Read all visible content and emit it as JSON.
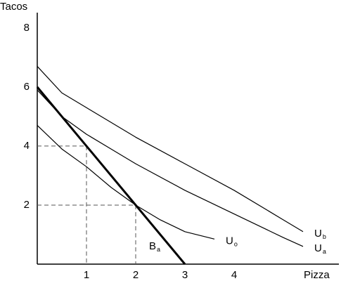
{
  "chart_data": {
    "type": "line",
    "x_label": "Pizza",
    "y_label": "Tacos",
    "xlim": [
      0,
      6.2
    ],
    "ylim": [
      0,
      8.4
    ],
    "xticks": [
      1,
      2,
      3,
      4
    ],
    "yticks": [
      2,
      4,
      6,
      8
    ],
    "series": [
      {
        "label_main": "U",
        "label_sub": "b",
        "color": "#000000",
        "line_width": 1.2,
        "x": [
          0,
          0.5,
          1,
          1.5,
          2,
          3,
          4,
          5,
          5.4
        ],
        "values": [
          6.7,
          5.8,
          5.3,
          4.8,
          4.3,
          3.4,
          2.5,
          1.5,
          1.1
        ]
      },
      {
        "label_main": "U",
        "label_sub": "a",
        "color": "#000000",
        "line_width": 1.2,
        "x": [
          0,
          0.5,
          1,
          1.5,
          2,
          3,
          4,
          5,
          5.4
        ],
        "values": [
          5.9,
          5.0,
          4.4,
          3.9,
          3.4,
          2.5,
          1.7,
          0.9,
          0.6
        ]
      },
      {
        "label_main": "U",
        "label_sub": "o",
        "color": "#000000",
        "line_width": 1.2,
        "x": [
          0,
          0.5,
          1,
          1.5,
          2,
          2.5,
          3,
          3.6
        ],
        "values": [
          4.7,
          3.9,
          3.3,
          2.6,
          2.0,
          1.5,
          1.1,
          0.85
        ]
      },
      {
        "label_main": "B",
        "label_sub": "a",
        "color": "#000000",
        "line_width": 3,
        "x": [
          0,
          3
        ],
        "values": [
          6,
          0
        ]
      }
    ],
    "guides": [
      {
        "x": 1,
        "y": 4
      },
      {
        "x": 2,
        "y": 2
      }
    ]
  }
}
